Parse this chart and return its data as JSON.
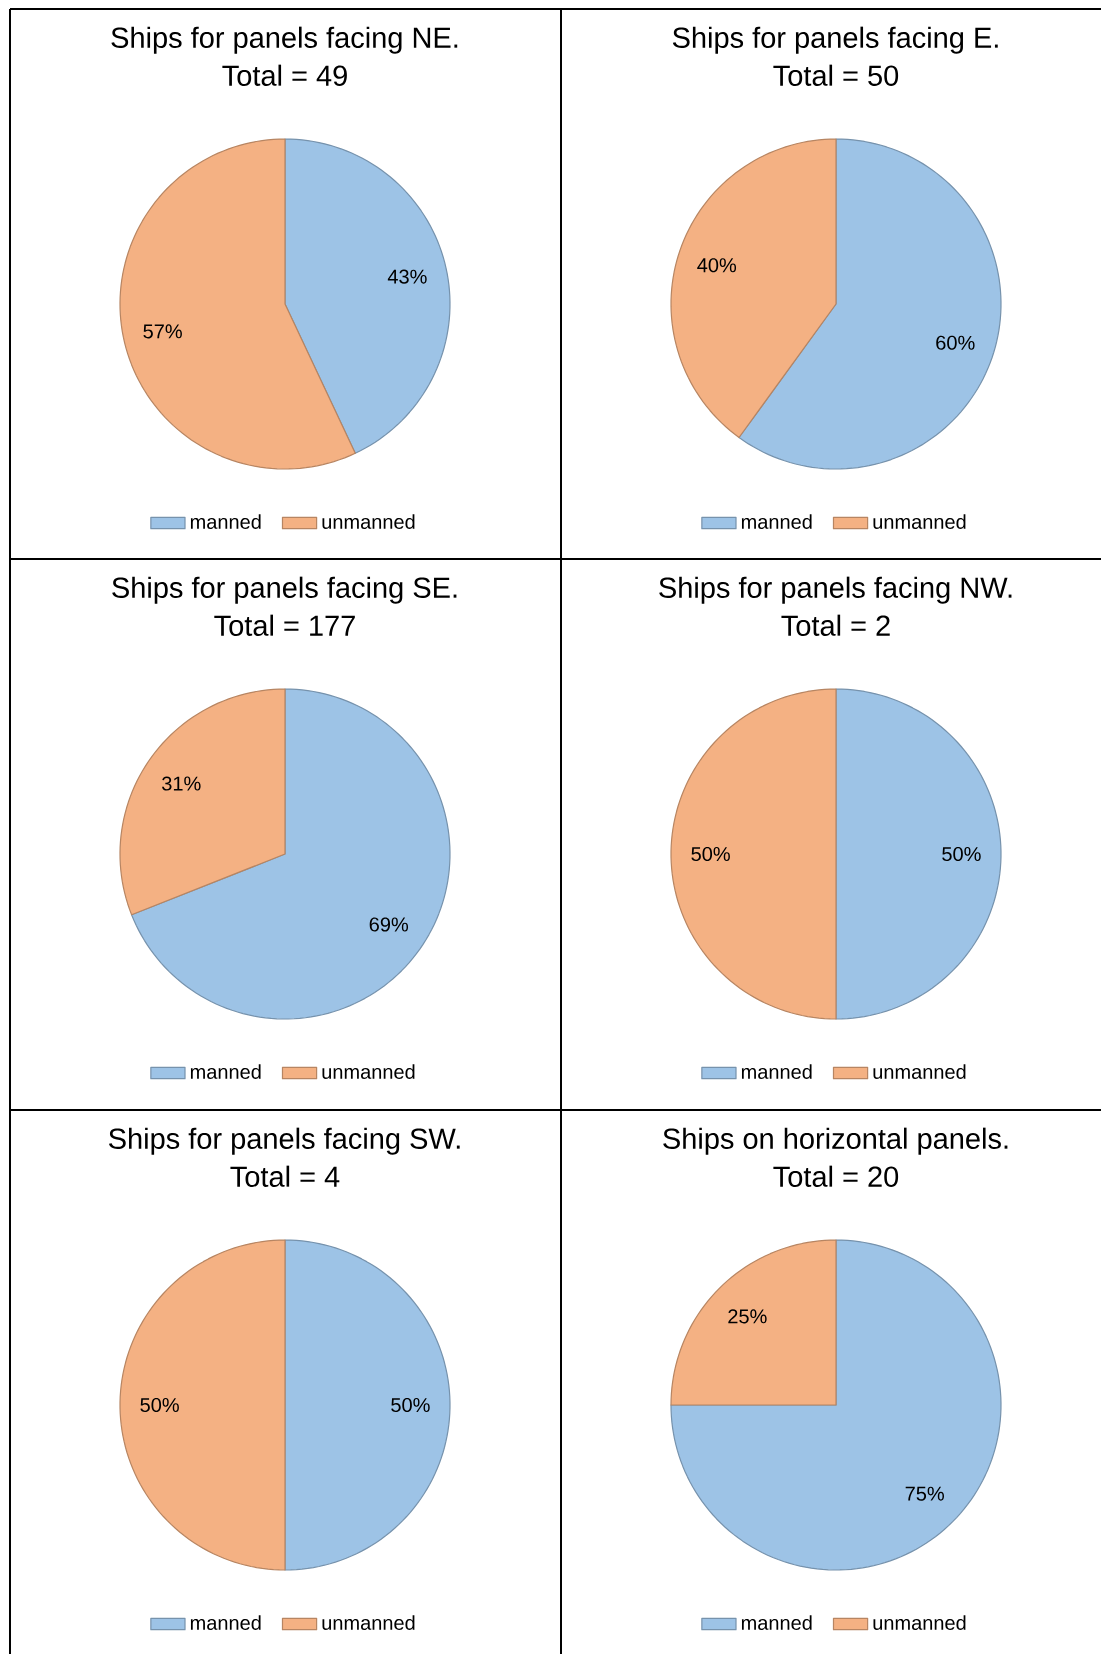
{
  "chart_data": [
    {
      "type": "pie",
      "title": "Ships for panels facing NE.",
      "subtitle": "Total = 49",
      "categories": [
        "manned",
        "unmanned"
      ],
      "values": [
        43,
        57
      ],
      "colors": [
        "#9dc3e6",
        "#f4b183"
      ],
      "value_labels": [
        "43%",
        "57%"
      ],
      "legend": "bottom"
    },
    {
      "type": "pie",
      "title": "Ships for panels facing E.",
      "subtitle": "Total = 50",
      "categories": [
        "manned",
        "unmanned"
      ],
      "values": [
        60,
        40
      ],
      "colors": [
        "#9dc3e6",
        "#f4b183"
      ],
      "value_labels": [
        "60%",
        "40%"
      ],
      "legend": "bottom"
    },
    {
      "type": "pie",
      "title": "Ships for panels facing SE.",
      "subtitle": "Total = 177",
      "categories": [
        "manned",
        "unmanned"
      ],
      "values": [
        69,
        31
      ],
      "colors": [
        "#9dc3e6",
        "#f4b183"
      ],
      "value_labels": [
        "69%",
        "31%"
      ],
      "legend": "bottom"
    },
    {
      "type": "pie",
      "title": "Ships for panels facing NW.",
      "subtitle": "Total = 2",
      "categories": [
        "manned",
        "unmanned"
      ],
      "values": [
        50,
        50
      ],
      "colors": [
        "#9dc3e6",
        "#f4b183"
      ],
      "value_labels": [
        "50%",
        "50%"
      ],
      "legend": "bottom"
    },
    {
      "type": "pie",
      "title": "Ships for panels facing SW.",
      "subtitle": "Total = 4",
      "categories": [
        "manned",
        "unmanned"
      ],
      "values": [
        50,
        50
      ],
      "colors": [
        "#9dc3e6",
        "#f4b183"
      ],
      "value_labels": [
        "50%",
        "50%"
      ],
      "legend": "bottom"
    },
    {
      "type": "pie",
      "title": "Ships on horizontal panels.",
      "subtitle": "Total = 20",
      "categories": [
        "manned",
        "unmanned"
      ],
      "values": [
        75,
        25
      ],
      "colors": [
        "#9dc3e6",
        "#f4b183"
      ],
      "value_labels": [
        "75%",
        "25%"
      ],
      "legend": "bottom"
    }
  ]
}
